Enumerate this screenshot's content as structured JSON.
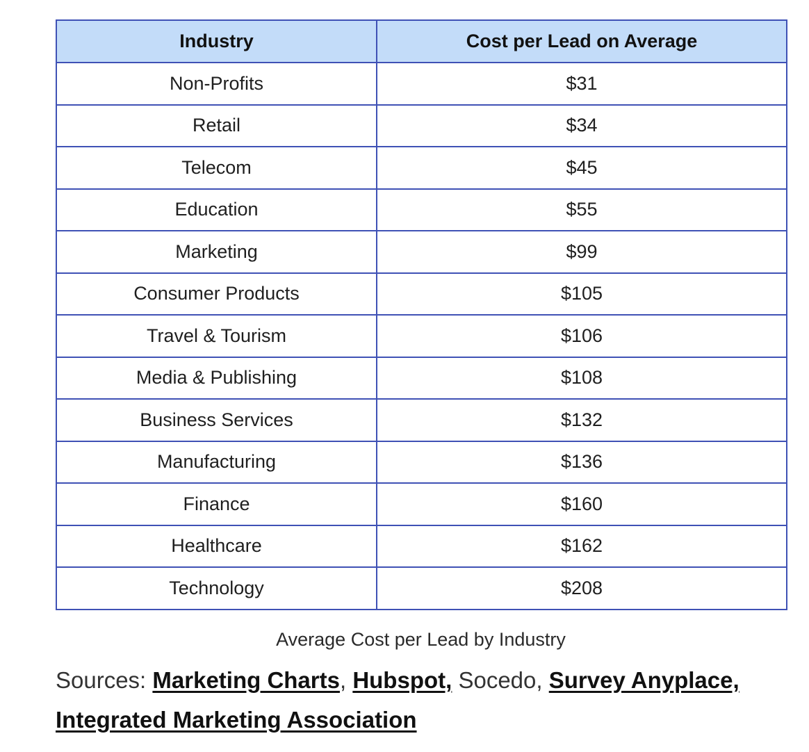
{
  "table": {
    "headers": [
      "Industry",
      "Cost per Lead on Average"
    ],
    "rows": [
      [
        "Non-Profits",
        "$31"
      ],
      [
        "Retail",
        "$34"
      ],
      [
        "Telecom",
        "$45"
      ],
      [
        "Education",
        "$55"
      ],
      [
        "Marketing",
        "$99"
      ],
      [
        "Consumer Products",
        "$105"
      ],
      [
        "Travel & Tourism",
        "$106"
      ],
      [
        "Media & Publishing",
        "$108"
      ],
      [
        "Business Services",
        "$132"
      ],
      [
        "Manufacturing",
        "$136"
      ],
      [
        "Finance",
        "$160"
      ],
      [
        "Healthcare",
        "$162"
      ],
      [
        "Technology",
        "$208"
      ]
    ],
    "caption": "Average Cost per Lead by Industry"
  },
  "sources": {
    "label": "Sources: ",
    "link1": "Marketing Charts",
    "sep1": ", ",
    "link2": "Hubspot,",
    "sep2": " Socedo, ",
    "link3": "Survey Anyplace,",
    "sep3": " ",
    "link4": "Integrated Marketing Association"
  },
  "colors": {
    "header_bg": "#c3dcf9",
    "border": "#3f51b5"
  }
}
